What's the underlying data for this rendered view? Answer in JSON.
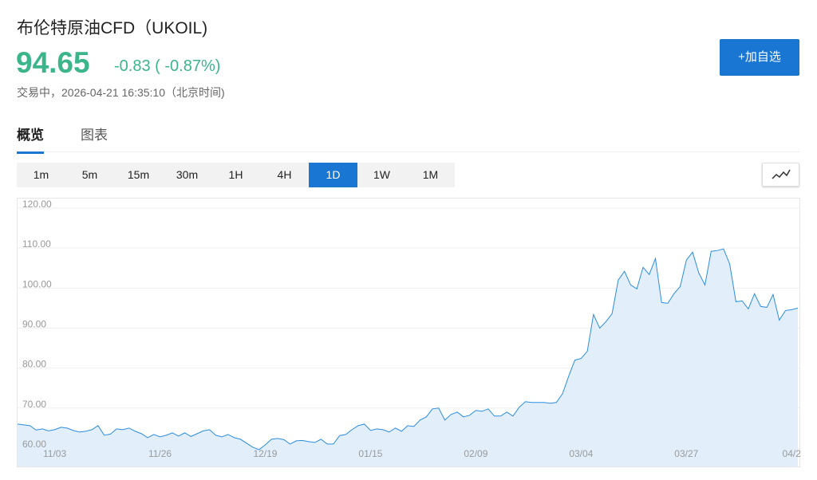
{
  "header": {
    "title": "布伦特原油CFD（UKOIL)",
    "price": "94.65",
    "change": "-0.83 ( -0.87%)",
    "status": "交易中，2026-04-21 16:35:10（北京时间)"
  },
  "button": "+加自选",
  "tabs": [
    "概览",
    "图表"
  ],
  "active_tab": 0,
  "intervals": [
    "1m",
    "5m",
    "15m",
    "30m",
    "1H",
    "4H",
    "1D",
    "1W",
    "1M"
  ],
  "active_interval": 6,
  "chart_data": {
    "type": "area",
    "color": "#2b8de0",
    "fill": "#e2effb",
    "categories": [
      null,
      null,
      null,
      null,
      null,
      null,
      "11/03",
      null,
      null,
      null,
      null,
      null,
      null,
      null,
      null,
      null,
      null,
      null,
      null,
      null,
      null,
      null,
      null,
      "11/26",
      null,
      null,
      null,
      null,
      null,
      null,
      null,
      null,
      null,
      null,
      null,
      null,
      null,
      null,
      null,
      null,
      "12/19",
      null,
      null,
      null,
      null,
      null,
      null,
      null,
      null,
      null,
      null,
      null,
      null,
      null,
      null,
      null,
      null,
      "01/15",
      null,
      null,
      null,
      null,
      null,
      null,
      null,
      null,
      null,
      null,
      null,
      null,
      null,
      null,
      null,
      null,
      "02/09",
      null,
      null,
      null,
      null,
      null,
      null,
      null,
      null,
      null,
      null,
      null,
      null,
      null,
      null,
      null,
      null,
      "03/04",
      null,
      null,
      null,
      null,
      null,
      null,
      null,
      null,
      null,
      null,
      null,
      null,
      null,
      null,
      null,
      null,
      "03/27",
      null,
      null,
      null,
      null,
      null,
      null,
      null,
      null,
      null,
      null,
      null,
      null,
      null,
      null,
      null,
      null,
      "04/2",
      null
    ],
    "values": [
      66.0,
      65.8,
      65.6,
      64.5,
      64.8,
      64.3,
      64.6,
      65.2,
      65.0,
      64.4,
      64.0,
      64.2,
      64.6,
      65.6,
      63.2,
      63.5,
      64.8,
      64.6,
      65.0,
      64.2,
      63.6,
      62.6,
      63.4,
      62.8,
      63.2,
      63.8,
      63.0,
      63.8,
      62.9,
      63.6,
      64.3,
      64.6,
      63.2,
      62.8,
      63.4,
      62.6,
      62.2,
      61.2,
      60.2,
      59.6,
      60.8,
      62.2,
      62.4,
      62.1,
      61.0,
      61.8,
      61.9,
      61.6,
      61.4,
      62.2,
      61.0,
      61.0,
      63.1,
      63.4,
      64.6,
      65.6,
      66.0,
      64.4,
      64.8,
      64.6,
      64.0,
      65.0,
      64.2,
      65.6,
      65.4,
      67.0,
      67.8,
      69.8,
      70.0,
      67.0,
      68.4,
      69.0,
      67.8,
      68.2,
      69.4,
      69.2,
      69.8,
      68.0,
      68.0,
      69.0,
      68.0,
      70.2,
      71.6,
      71.4,
      71.4,
      71.4,
      71.2,
      71.4,
      73.6,
      78.0,
      82.0,
      82.4,
      84.2,
      93.4,
      90.0,
      91.6,
      93.6,
      102.0,
      104.2,
      100.8,
      99.8,
      105.2,
      103.4,
      107.4,
      96.4,
      96.2,
      98.6,
      100.4,
      107.0,
      109.0,
      103.8,
      100.8,
      109.2,
      109.4,
      109.8,
      106.0,
      96.6,
      96.8,
      94.8,
      98.6,
      95.4,
      95.2,
      98.4,
      92.0,
      94.4,
      94.6,
      95.0
    ],
    "ylim": [
      55.4,
      122.4
    ],
    "yticks": [
      {
        "value": 60,
        "label": "60.00"
      },
      {
        "value": 70,
        "label": "70.00"
      },
      {
        "value": 80,
        "label": "80.00"
      },
      {
        "value": 90,
        "label": "90.00"
      },
      {
        "value": 100,
        "label": "100.00"
      },
      {
        "value": 110,
        "label": "110.00"
      },
      {
        "value": 120,
        "label": "120.00"
      }
    ],
    "grid": true
  }
}
